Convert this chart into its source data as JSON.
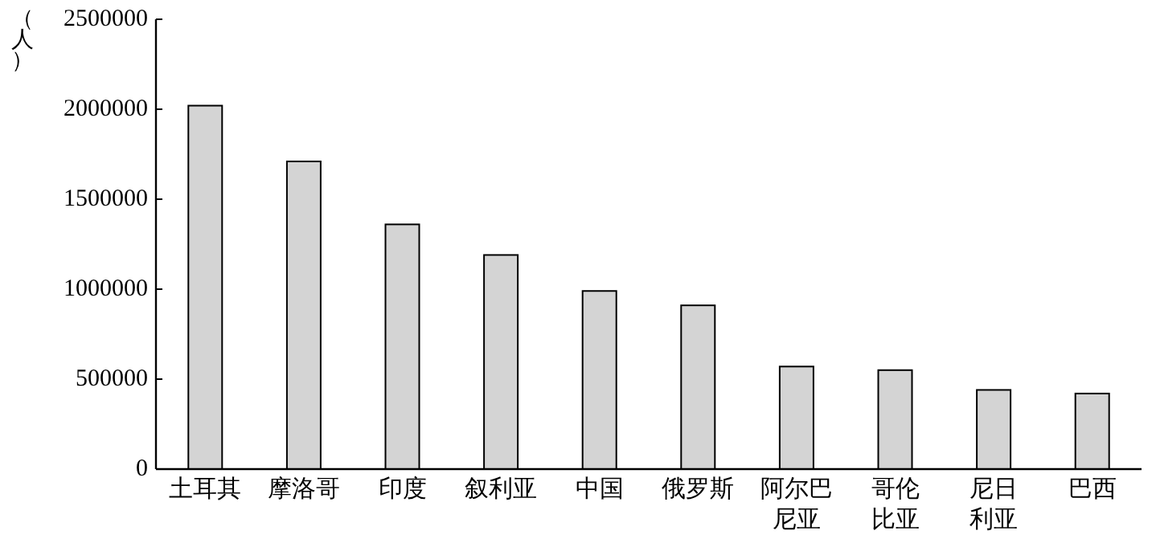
{
  "chart_data": {
    "type": "bar",
    "ylabel": "（人）",
    "categories": [
      "土耳其",
      "摩洛哥",
      "印度",
      "叙利亚",
      "中国",
      "俄罗斯",
      "阿尔巴尼亚",
      "哥伦比亚",
      "尼日利亚",
      "巴西"
    ],
    "values": [
      2020000,
      1710000,
      1360000,
      1190000,
      990000,
      910000,
      570000,
      550000,
      440000,
      420000
    ],
    "color": "#d4d4d4",
    "ylim": [
      0,
      2500000
    ],
    "yticks": [
      0,
      500000,
      1000000,
      1500000,
      2000000,
      2500000
    ],
    "grid": false
  }
}
